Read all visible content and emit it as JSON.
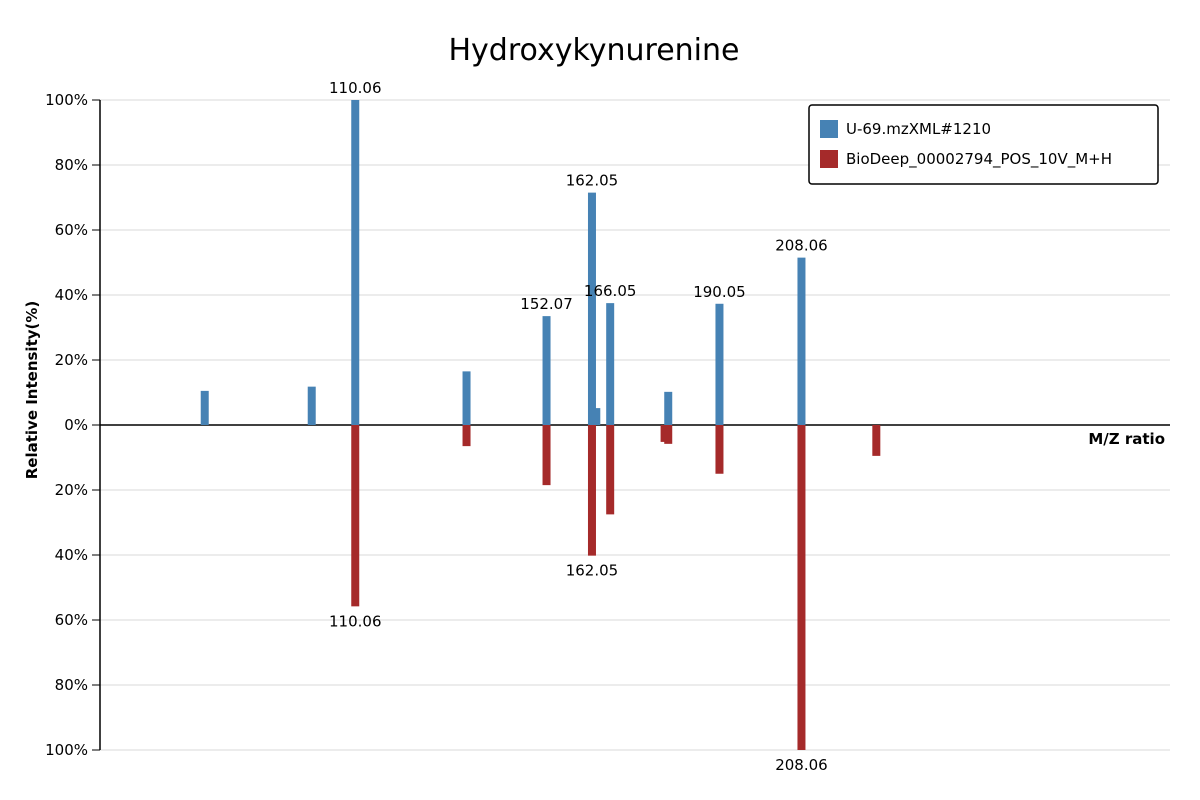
{
  "chart_data": {
    "type": "bar",
    "title": "Hydroxykynurenine",
    "xlabel": "M/Z ratio",
    "ylabel": "Relative Intensity(%)",
    "xlim": [
      54,
      289
    ],
    "ylim": [
      -100,
      100
    ],
    "y_ticks": [
      "100%",
      "80%",
      "60%",
      "40%",
      "20%",
      "0%",
      "20%",
      "40%",
      "60%",
      "80%",
      "100%"
    ],
    "grid": true,
    "legend_position": "top-right",
    "series": [
      {
        "name": "U-69.mzXML#1210",
        "color": "#4682b4",
        "direction": "up",
        "x": [
          77.0,
          100.5,
          110.06,
          134.5,
          152.07,
          162.05,
          163.0,
          166.05,
          178.8,
          190.05,
          208.06
        ],
        "values": [
          10.5,
          11.8,
          100,
          16.5,
          33.5,
          71.5,
          5.2,
          37.5,
          10.2,
          37.3,
          51.5
        ],
        "labels": [
          "",
          "",
          "110.06",
          "",
          "152.07",
          "162.05",
          "",
          "166.05",
          "",
          "190.05",
          "208.06"
        ]
      },
      {
        "name": "BioDeep_00002794_POS_10V_M+H",
        "color": "#a52a2a",
        "direction": "down",
        "x": [
          110.06,
          134.5,
          152.07,
          162.05,
          166.05,
          178.0,
          178.8,
          190.05,
          208.06,
          224.5
        ],
        "values": [
          55.8,
          6.5,
          18.5,
          40.2,
          27.5,
          5.2,
          5.8,
          15.0,
          100,
          9.5
        ],
        "labels": [
          "110.06",
          "",
          "",
          "162.05",
          "",
          "",
          "",
          "",
          "208.06",
          ""
        ]
      }
    ]
  }
}
